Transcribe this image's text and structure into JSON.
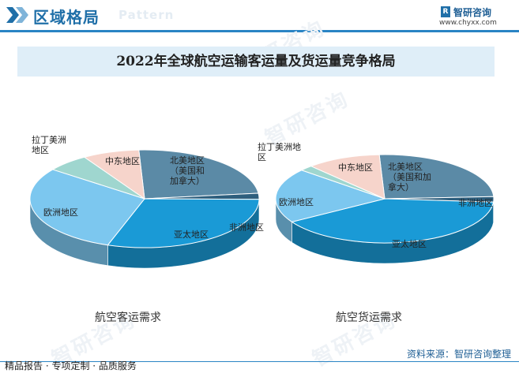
{
  "header": {
    "section_title": "区域格局",
    "ghost_text": "Pattern",
    "brand_name": "智研咨询",
    "brand_url": "www.chyxx.com"
  },
  "chart_title": "2022年全球航空运输客运量及货运量竞争格局",
  "chart_data": [
    {
      "type": "pie",
      "title": "航空客运需求",
      "slices": [
        {
          "label": "北美地区（美国和加拿大）",
          "value": 24,
          "color": "#5b8aa6"
        },
        {
          "label": "非洲地区",
          "value": 2,
          "color": "#2e5f7e"
        },
        {
          "label": "亚太地区",
          "value": 30,
          "color": "#1a9ad6"
        },
        {
          "label": "欧洲地区",
          "value": 30,
          "color": "#7cc7ef"
        },
        {
          "label": "拉丁美洲地区",
          "value": 6,
          "color": "#9fd6cf"
        },
        {
          "label": "中东地区",
          "value": 8,
          "color": "#f6d4cb"
        }
      ]
    },
    {
      "type": "pie",
      "title": "航空货运需求",
      "slices": [
        {
          "label": "北美地区（美国和加拿大）",
          "value": 25,
          "color": "#5b8aa6"
        },
        {
          "label": "非洲地区",
          "value": 2,
          "color": "#2e5f7e"
        },
        {
          "label": "亚太地区",
          "value": 40,
          "color": "#1a9ad6"
        },
        {
          "label": "欧洲地区",
          "value": 20,
          "color": "#7cc7ef"
        },
        {
          "label": "拉丁美洲地区",
          "value": 2,
          "color": "#9fd6cf"
        },
        {
          "label": "中东地区",
          "value": 11,
          "color": "#f6d4cb"
        }
      ]
    }
  ],
  "pie_labels": {
    "left": {
      "north_america": [
        "北美地区",
        "（美国和",
        "加拿大）"
      ],
      "africa": [
        "非洲地区"
      ],
      "asia_pacific": [
        "亚太地区"
      ],
      "europe": [
        "欧洲地区"
      ],
      "latin_america": [
        "拉丁美洲",
        "地区"
      ],
      "middle_east": [
        "中东地区"
      ]
    },
    "right": {
      "north_america": [
        "北美地区",
        "（美国和加",
        "拿大）"
      ],
      "africa": [
        "非洲地区"
      ],
      "asia_pacific": [
        "亚太地区"
      ],
      "europe": [
        "欧洲地区"
      ],
      "latin_america": [
        "拉丁美洲地",
        "区"
      ],
      "middle_east": [
        "中东地区"
      ]
    }
  },
  "footer": {
    "left": "精品报告 · 专项定制 · 品质服务",
    "source": "资料来源：智研咨询整理"
  }
}
